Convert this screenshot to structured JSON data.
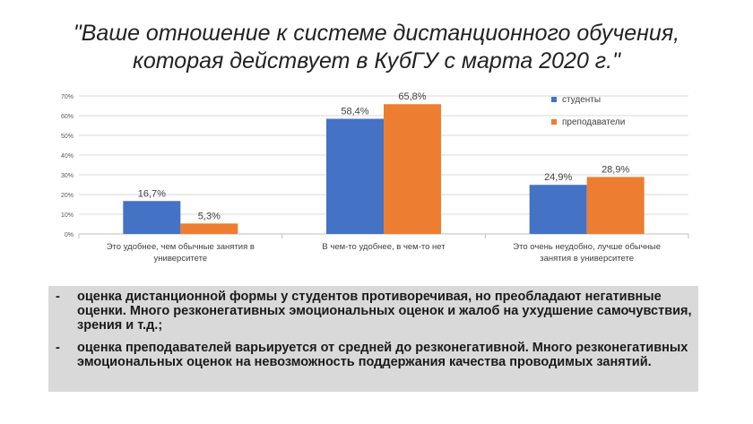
{
  "page": {
    "title_line1": "\"Ваше отношение к системе дистанционного обучения,",
    "title_line2": "которая действует в КубГУ с марта 2020 г.\""
  },
  "chart_data": {
    "type": "bar",
    "categories": [
      [
        "Это удобнее, чем обычные занятия в",
        "университете"
      ],
      [
        "В чем-то удобнее, в чем-то нет"
      ],
      [
        "Это очень неудобно, лучше обычные",
        "занятия в университете"
      ]
    ],
    "series": [
      {
        "name": "студенты",
        "values": [
          16.7,
          58.4,
          24.9
        ],
        "labels": [
          "16,7%",
          "58,4%",
          "24,9%"
        ],
        "color": "#4472c4"
      },
      {
        "name": "преподаватели",
        "values": [
          5.3,
          65.8,
          28.9
        ],
        "labels": [
          "5,3%",
          "65,8%",
          "28,9%"
        ],
        "color": "#ed7d31"
      }
    ],
    "ylim": [
      0,
      70
    ],
    "yticks": [
      "0%",
      "10%",
      "20%",
      "30%",
      "40%",
      "50%",
      "60%",
      "70%"
    ],
    "grid": true,
    "legend": "right"
  },
  "notes": [
    {
      "dash": "-",
      "text": "оценка дистанционной формы у студентов противоречивая, но преобладают негативные оценки. Много резконегативных эмоциональных оценок и жалоб на ухудшение самочувствия, зрения и т.д.;"
    },
    {
      "dash": "-",
      "text": "оценка преподавателей варьируется от средней до резконегативной. Много резконегативных эмоциональных оценок на невозможность поддержания качества проводимых занятий."
    }
  ]
}
